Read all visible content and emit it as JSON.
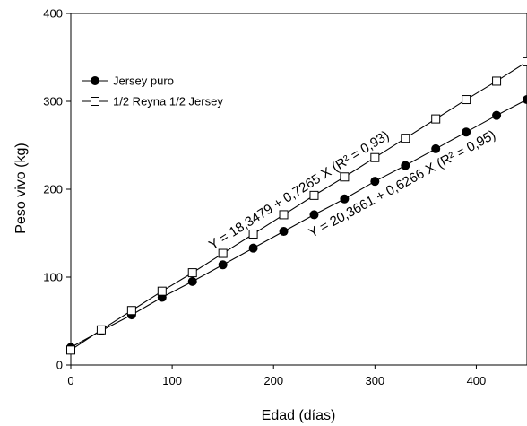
{
  "chart_data": {
    "type": "line",
    "title": "",
    "xlabel": "Edad (días)",
    "ylabel": "Peso vivo (kg)",
    "xlim": [
      0,
      450
    ],
    "ylim": [
      0,
      400
    ],
    "xticks": [
      0,
      100,
      200,
      300,
      400
    ],
    "yticks": [
      0,
      100,
      200,
      300,
      400
    ],
    "grid": false,
    "legend_position": "upper-left",
    "series": [
      {
        "name": "Jersey puro",
        "marker": "filled-circle",
        "color": "#000000",
        "x": [
          0,
          30,
          60,
          90,
          120,
          150,
          180,
          210,
          240,
          270,
          300,
          330,
          360,
          390,
          420,
          450
        ],
        "y": [
          20,
          39,
          57,
          77,
          95,
          114,
          133,
          152,
          171,
          189,
          209,
          227,
          246,
          265,
          284,
          302
        ]
      },
      {
        "name": "1/2 Reyna 1/2 Jersey",
        "marker": "open-square",
        "color": "#000000",
        "x": [
          0,
          30,
          60,
          90,
          120,
          150,
          180,
          210,
          240,
          270,
          300,
          330,
          360,
          390,
          420,
          450
        ],
        "y": [
          17,
          40,
          62,
          84,
          105,
          127,
          149,
          171,
          193,
          214,
          236,
          258,
          280,
          302,
          323,
          345
        ]
      }
    ],
    "annotations": [
      {
        "text": "Y = 18,3479 + 0,7265 X (R² = 0,93)",
        "series": "1/2 Reyna 1/2 Jersey",
        "x_center": 232
      },
      {
        "text": "Y = 20,3661 + 0,6266 X (R² = 0,95)",
        "series": "Jersey puro",
        "x_center": 320
      }
    ]
  }
}
